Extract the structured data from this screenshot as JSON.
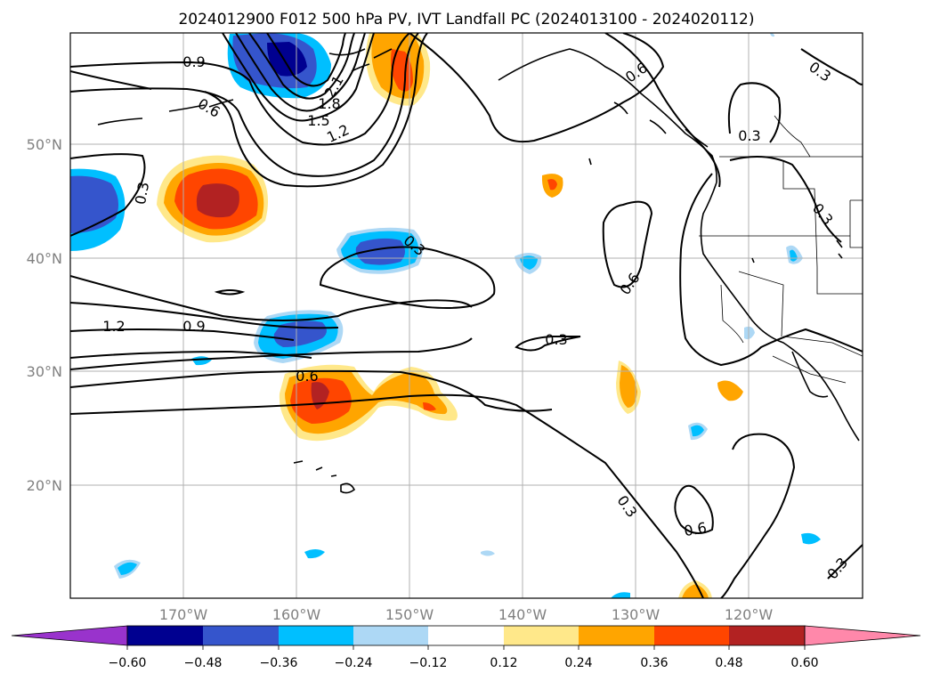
{
  "title": "2024012900 F012 500 hPa PV, IVT Landfall PC (2024013100 - 2024020112)",
  "lat_labels": [
    "50°N",
    "40°N",
    "30°N",
    "20°N"
  ],
  "lon_labels": [
    "170°W",
    "160°W",
    "150°W",
    "140°W",
    "130°W",
    "120°W"
  ],
  "contour_labels": [
    "0.9",
    "0.6",
    "0.3",
    "0.3",
    "1.2",
    "0.9",
    "0.6",
    "0.3",
    "2.1",
    "1.8",
    "1.5",
    "1.2",
    "0.6",
    "0.3",
    "0.3",
    "0.6",
    "0.3",
    "0.6",
    "0.3",
    "0.3"
  ],
  "colorbar": {
    "ticks": [
      "−0.60",
      "−0.48",
      "−0.36",
      "−0.24",
      "−0.12",
      "0.12",
      "0.24",
      "0.36",
      "0.48",
      "0.60"
    ],
    "colors": {
      "under": "#9933cc",
      "neg060": "#000090",
      "neg048": "#3555cc",
      "neg036": "#00bfff",
      "neg024": "#add8f5",
      "neutral": "#ffffff",
      "pos012": "#ffe88a",
      "pos024": "#ffa500",
      "pos036": "#ff4500",
      "pos048": "#b22222",
      "over": "#ff88aa"
    }
  }
}
